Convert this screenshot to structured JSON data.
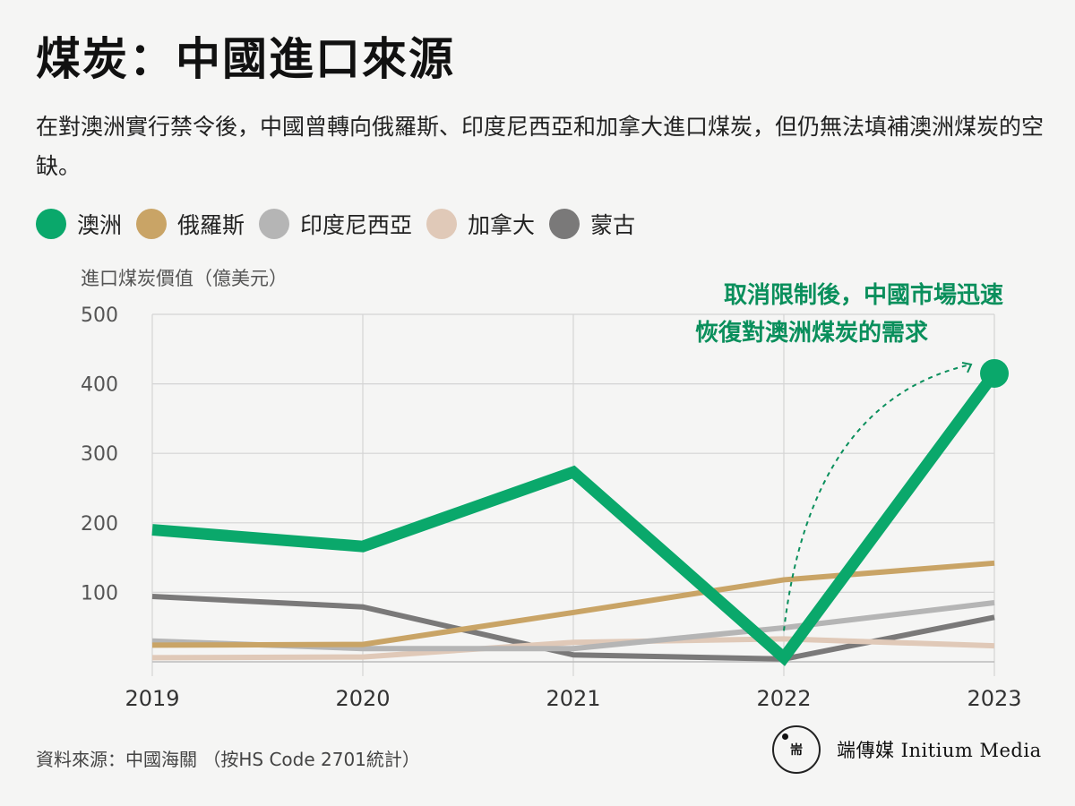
{
  "header": {
    "title": "煤炭：中國進口來源",
    "subtitle": "在對澳洲實行禁令後，中國曾轉向俄羅斯、印度尼西亞和加拿大進口煤炭，但仍無法填補澳洲煤炭的空缺。"
  },
  "footer": {
    "source": "資料來源：中國海關 （按HS Code 2701統計）",
    "brand_text": "端傳媒 Initium Media",
    "brand_logo_mark": "耑"
  },
  "chart_data": {
    "type": "line",
    "title": "煤炭：中國進口來源",
    "ylabel": "進口煤炭價值（億美元）",
    "xlabel": "",
    "x": [
      "2019",
      "2020",
      "2021",
      "2022",
      "2023"
    ],
    "ylim": [
      0,
      500
    ],
    "yticks": [
      "100",
      "200",
      "300",
      "400",
      "500"
    ],
    "grid": true,
    "legend_position": "top-left",
    "series": [
      {
        "name": "蒙古",
        "color": "#7a7979",
        "values": [
          94,
          79,
          10,
          4,
          64
        ]
      },
      {
        "name": "加拿大",
        "color": "#e0c9b8",
        "values": [
          6,
          7,
          28,
          33,
          23
        ]
      },
      {
        "name": "印度尼西亞",
        "color": "#b5b5b5",
        "values": [
          30,
          19,
          19,
          49,
          85
        ]
      },
      {
        "name": "俄羅斯",
        "color": "#c9a466",
        "values": [
          24,
          25,
          71,
          118,
          142
        ]
      },
      {
        "name": "澳洲",
        "color": "#0aa86b",
        "values": [
          190,
          166,
          273,
          6,
          415
        ]
      }
    ],
    "legend_order": [
      "澳洲",
      "俄羅斯",
      "印度尼西亞",
      "加拿大",
      "蒙古"
    ],
    "annotation": {
      "line1": "取消限制後，中國市場迅速",
      "line2": "恢復對澳洲煤炭的需求",
      "color": "#0a8f5c"
    },
    "gridline_color": "#d4d4d4",
    "axis_label_color": "#555555"
  }
}
